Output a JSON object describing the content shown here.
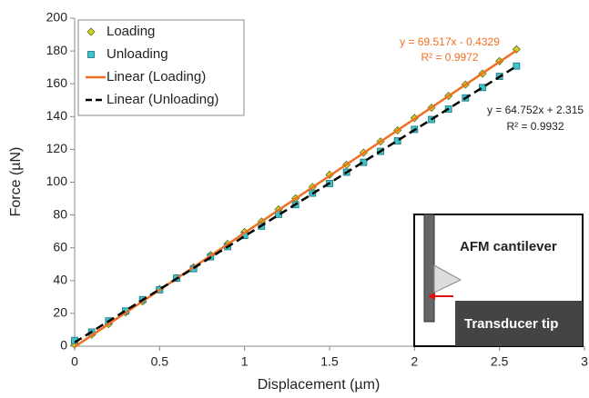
{
  "chart_data": {
    "type": "scatter",
    "x_label": "Displacement (µm)",
    "y_label": "Force (µN)",
    "xlim": [
      0,
      3
    ],
    "xticks": [
      0,
      0.5,
      1,
      1.5,
      2,
      2.5,
      3
    ],
    "ylim": [
      0,
      200
    ],
    "yticks": [
      0,
      20,
      40,
      60,
      80,
      100,
      120,
      140,
      160,
      180,
      200
    ],
    "legend": "top-left",
    "series": [
      {
        "name": "Loading",
        "color": "#d6d21a",
        "marker": "diamond",
        "x": [
          0,
          0.1,
          0.2,
          0.3,
          0.4,
          0.5,
          0.6,
          0.7,
          0.8,
          0.9,
          1.0,
          1.1,
          1.2,
          1.3,
          1.4,
          1.5,
          1.6,
          1.7,
          1.8,
          1.9,
          2.0,
          2.1,
          2.2,
          2.3,
          2.4,
          2.5,
          2.6
        ],
        "values": [
          1,
          7,
          13.5,
          20.6,
          27.3,
          34.8,
          41.5,
          48.1,
          55.6,
          62.4,
          69.6,
          76,
          83.4,
          90.2,
          97.1,
          104.5,
          110.6,
          118,
          124.8,
          131.6,
          139.1,
          145.4,
          152.6,
          159.5,
          166.2,
          173.8,
          181
        ]
      },
      {
        "name": "Unloading",
        "color": "#3ec3c8",
        "marker": "square",
        "x": [
          0,
          0.1,
          0.2,
          0.3,
          0.4,
          0.5,
          0.6,
          0.7,
          0.8,
          0.9,
          1.0,
          1.1,
          1.2,
          1.3,
          1.4,
          1.5,
          1.6,
          1.7,
          1.8,
          1.9,
          2.0,
          2.1,
          2.2,
          2.3,
          2.4,
          2.5,
          2.6
        ],
        "values": [
          3.5,
          8.6,
          15.4,
          21.5,
          28.4,
          34.4,
          41.5,
          47.3,
          54.5,
          60.7,
          67.5,
          73.2,
          80.4,
          86.3,
          93.3,
          99.2,
          106.1,
          112.1,
          118.8,
          125.2,
          132.2,
          138.2,
          144.6,
          151.4,
          157.7,
          164.5,
          170.8
        ]
      },
      {
        "name": "Linear (Loading)",
        "color": "#f07022",
        "marker": "line",
        "style": "solid",
        "x": [
          0,
          2.6
        ],
        "values": [
          -0.4,
          180.3
        ]
      },
      {
        "name": "Linear (Unloading)",
        "color": "#000000",
        "marker": "line",
        "style": "dashed",
        "x": [
          0,
          2.6
        ],
        "values": [
          2.3,
          170.7
        ]
      }
    ],
    "annotations": [
      {
        "text": "y = 69.517x - 0.4329",
        "color": "#f07022"
      },
      {
        "text": "R² = 0.9972",
        "color": "#f07022"
      },
      {
        "text": "y = 64.752x + 2.315",
        "color": "#222222"
      },
      {
        "text": "R² = 0.9932",
        "color": "#222222"
      }
    ]
  },
  "inset": {
    "cantilever": "AFM cantilever",
    "tip": "Transducer tip"
  }
}
